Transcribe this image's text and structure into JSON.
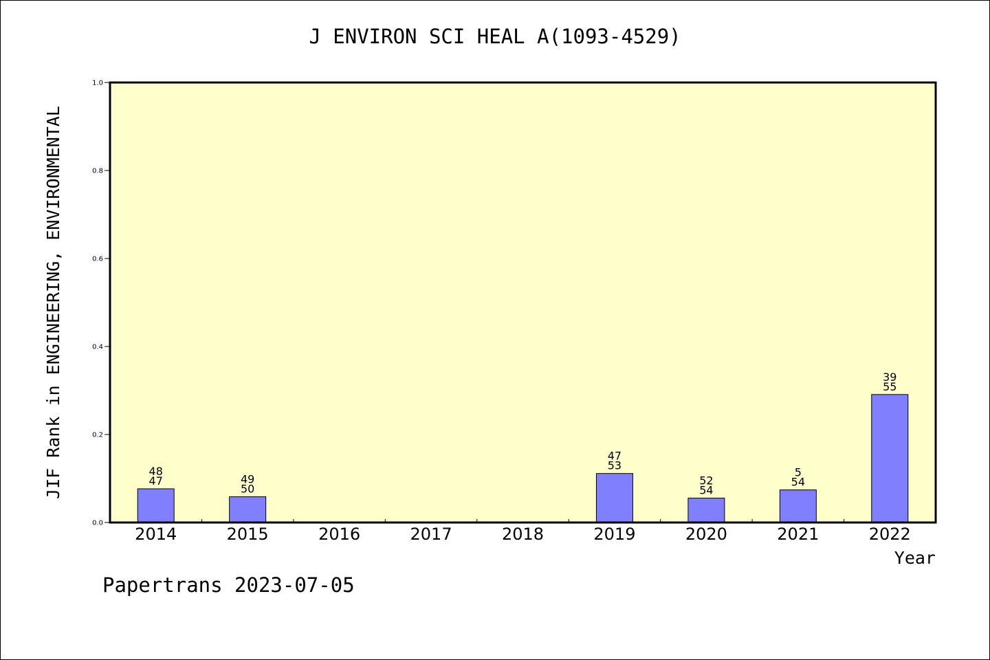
{
  "chart_data": {
    "type": "bar",
    "title": "J ENVIRON SCI HEAL A(1093-4529)",
    "xlabel": "Year",
    "ylabel": "JIF Rank in ENGINEERING, ENVIRONMENTAL",
    "ylim": [
      0,
      1.0
    ],
    "yticks": [
      "0.0",
      "0.2",
      "0.4",
      "0.6",
      "0.8",
      "1.0"
    ],
    "categories": [
      "2014",
      "2015",
      "2016",
      "2017",
      "2018",
      "2019",
      "2020",
      "2021",
      "2022"
    ],
    "values": [
      0.0766,
      0.0585,
      null,
      null,
      null,
      0.1114,
      0.0555,
      0.0741,
      0.2909
    ],
    "label_top": [
      "48",
      "49",
      "",
      "",
      "",
      "47",
      "52",
      "5",
      "39"
    ],
    "label_bottom": [
      "47",
      "50",
      "",
      "",
      "",
      "53",
      "54",
      "54",
      "55"
    ],
    "grid": false,
    "colors": {
      "bar": "#8080ff",
      "plot_bg": "#ffffcc"
    }
  },
  "footer": "Papertrans 2023-07-05"
}
